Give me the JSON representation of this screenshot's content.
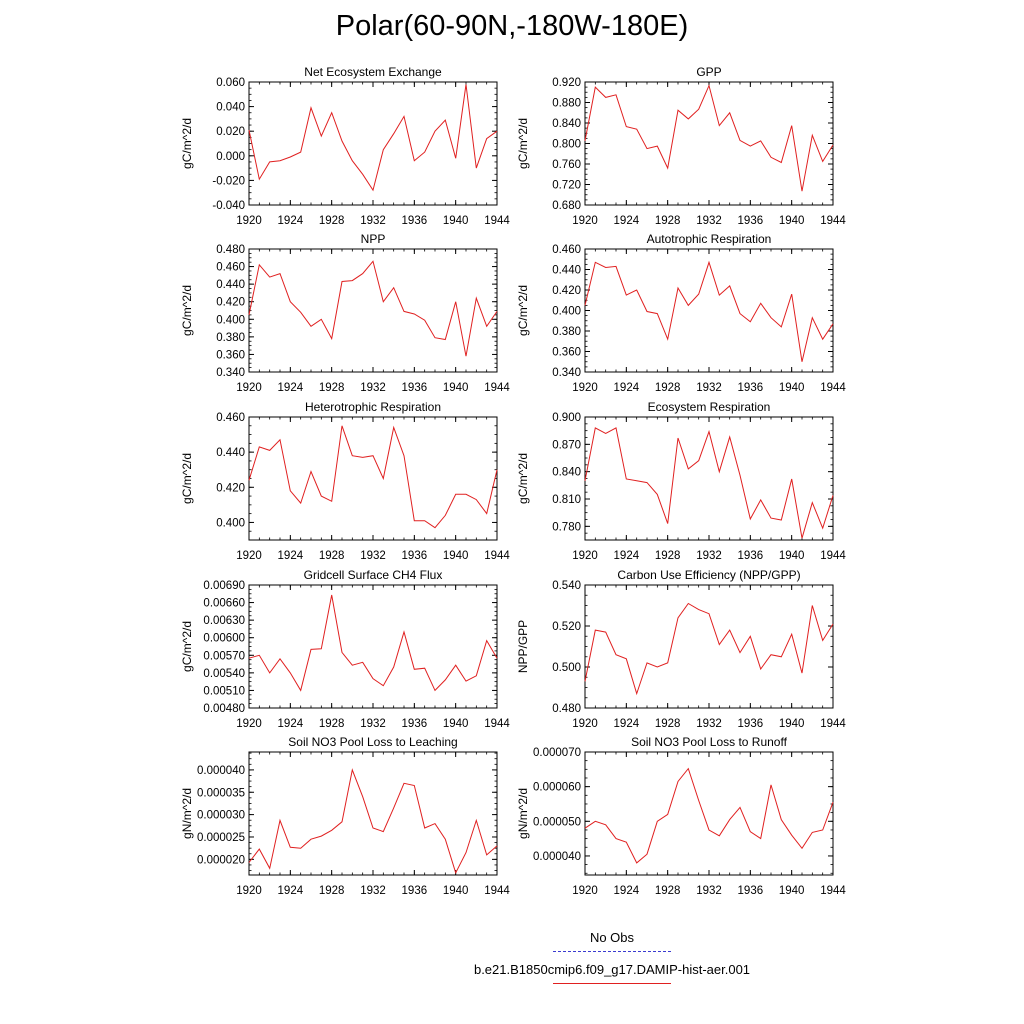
{
  "title": "Polar(60-90N,-180W-180E)",
  "colors": {
    "model": "#e02020",
    "obs": "#3b3bd0",
    "axis": "#000000"
  },
  "legend": {
    "obs_label": "No Obs",
    "model_label": "b.e21.B1850cmip6.f09_g17.DAMIP-hist-aer.001"
  },
  "chart_data": [
    {
      "type": "line",
      "title": "Net Ecosystem Exchange",
      "ylabel": "gC/m^2/d",
      "ylim": [
        -0.04,
        0.06
      ],
      "yticks": [
        "-0.040",
        "-0.020",
        "0.000",
        "0.020",
        "0.040",
        "0.060"
      ],
      "xlim": [
        1920,
        1944
      ],
      "xticks": [
        "1920",
        "1924",
        "1928",
        "1932",
        "1936",
        "1940",
        "1944"
      ],
      "x": [
        1920,
        1921,
        1922,
        1923,
        1924,
        1925,
        1926,
        1927,
        1928,
        1929,
        1930,
        1931,
        1932,
        1933,
        1934,
        1935,
        1936,
        1937,
        1938,
        1939,
        1940,
        1941,
        1942,
        1943,
        1944
      ],
      "series": [
        {
          "values": [
            0.021,
            -0.019,
            -0.005,
            -0.004,
            -0.001,
            0.003,
            0.039,
            0.016,
            0.035,
            0.012,
            -0.004,
            -0.015,
            -0.028,
            0.005,
            0.018,
            0.032,
            -0.004,
            0.003,
            0.02,
            0.029,
            -0.002,
            0.058,
            -0.01,
            0.014,
            0.02
          ]
        }
      ]
    },
    {
      "type": "line",
      "title": "GPP",
      "ylabel": "gC/m^2/d",
      "ylim": [
        0.68,
        0.92
      ],
      "yticks": [
        "0.680",
        "0.720",
        "0.760",
        "0.800",
        "0.840",
        "0.880",
        "0.920"
      ],
      "xlim": [
        1920,
        1944
      ],
      "xticks": [
        "1920",
        "1924",
        "1928",
        "1932",
        "1936",
        "1940",
        "1944"
      ],
      "x": [
        1920,
        1921,
        1922,
        1923,
        1924,
        1925,
        1926,
        1927,
        1928,
        1929,
        1930,
        1931,
        1932,
        1933,
        1934,
        1935,
        1936,
        1937,
        1938,
        1939,
        1940,
        1941,
        1942,
        1943,
        1944
      ],
      "series": [
        {
          "values": [
            0.805,
            0.91,
            0.89,
            0.895,
            0.833,
            0.828,
            0.79,
            0.795,
            0.752,
            0.865,
            0.848,
            0.867,
            0.913,
            0.835,
            0.86,
            0.806,
            0.795,
            0.805,
            0.773,
            0.763,
            0.835,
            0.707,
            0.816,
            0.765,
            0.797
          ]
        }
      ]
    },
    {
      "type": "line",
      "title": "NPP",
      "ylabel": "gC/m^2/d",
      "ylim": [
        0.34,
        0.48
      ],
      "yticks": [
        "0.340",
        "0.360",
        "0.380",
        "0.400",
        "0.420",
        "0.440",
        "0.460",
        "0.480"
      ],
      "xlim": [
        1920,
        1944
      ],
      "xticks": [
        "1920",
        "1924",
        "1928",
        "1932",
        "1936",
        "1940",
        "1944"
      ],
      "x": [
        1920,
        1921,
        1922,
        1923,
        1924,
        1925,
        1926,
        1927,
        1928,
        1929,
        1930,
        1931,
        1932,
        1933,
        1934,
        1935,
        1936,
        1937,
        1938,
        1939,
        1940,
        1941,
        1942,
        1943,
        1944
      ],
      "series": [
        {
          "values": [
            0.405,
            0.462,
            0.448,
            0.452,
            0.42,
            0.408,
            0.392,
            0.4,
            0.378,
            0.443,
            0.444,
            0.452,
            0.466,
            0.42,
            0.436,
            0.409,
            0.406,
            0.399,
            0.379,
            0.377,
            0.42,
            0.358,
            0.424,
            0.392,
            0.409
          ]
        }
      ]
    },
    {
      "type": "line",
      "title": "Autotrophic Respiration",
      "ylabel": "gC/m^2/d",
      "ylim": [
        0.34,
        0.46
      ],
      "yticks": [
        "0.340",
        "0.360",
        "0.380",
        "0.400",
        "0.420",
        "0.440",
        "0.460"
      ],
      "xlim": [
        1920,
        1944
      ],
      "xticks": [
        "1920",
        "1924",
        "1928",
        "1932",
        "1936",
        "1940",
        "1944"
      ],
      "x": [
        1920,
        1921,
        1922,
        1923,
        1924,
        1925,
        1926,
        1927,
        1928,
        1929,
        1930,
        1931,
        1932,
        1933,
        1934,
        1935,
        1936,
        1937,
        1938,
        1939,
        1940,
        1941,
        1942,
        1943,
        1944
      ],
      "series": [
        {
          "values": [
            0.405,
            0.447,
            0.442,
            0.443,
            0.415,
            0.42,
            0.399,
            0.397,
            0.372,
            0.422,
            0.405,
            0.416,
            0.447,
            0.415,
            0.424,
            0.397,
            0.389,
            0.407,
            0.393,
            0.384,
            0.416,
            0.35,
            0.393,
            0.372,
            0.387
          ]
        }
      ]
    },
    {
      "type": "line",
      "title": "Heterotrophic Respiration",
      "ylabel": "gC/m^2/d",
      "ylim": [
        0.39,
        0.46
      ],
      "yticks": [
        "0.400",
        "0.420",
        "0.440",
        "0.460"
      ],
      "xlim": [
        1920,
        1944
      ],
      "xticks": [
        "1920",
        "1924",
        "1928",
        "1932",
        "1936",
        "1940",
        "1944"
      ],
      "x": [
        1920,
        1921,
        1922,
        1923,
        1924,
        1925,
        1926,
        1927,
        1928,
        1929,
        1930,
        1931,
        1932,
        1933,
        1934,
        1935,
        1936,
        1937,
        1938,
        1939,
        1940,
        1941,
        1942,
        1943,
        1944
      ],
      "series": [
        {
          "values": [
            0.424,
            0.443,
            0.441,
            0.447,
            0.418,
            0.411,
            0.429,
            0.415,
            0.412,
            0.455,
            0.438,
            0.437,
            0.438,
            0.425,
            0.454,
            0.438,
            0.401,
            0.401,
            0.397,
            0.404,
            0.416,
            0.416,
            0.413,
            0.405,
            0.43
          ]
        }
      ]
    },
    {
      "type": "line",
      "title": "Ecosystem Respiration",
      "ylabel": "gC/m^2/d",
      "ylim": [
        0.765,
        0.9
      ],
      "yticks": [
        "0.780",
        "0.810",
        "0.840",
        "0.870",
        "0.900"
      ],
      "xlim": [
        1920,
        1944
      ],
      "xticks": [
        "1920",
        "1924",
        "1928",
        "1932",
        "1936",
        "1940",
        "1944"
      ],
      "x": [
        1920,
        1921,
        1922,
        1923,
        1924,
        1925,
        1926,
        1927,
        1928,
        1929,
        1930,
        1931,
        1932,
        1933,
        1934,
        1935,
        1936,
        1937,
        1938,
        1939,
        1940,
        1941,
        1942,
        1943,
        1944
      ],
      "series": [
        {
          "values": [
            0.83,
            0.888,
            0.882,
            0.888,
            0.832,
            0.83,
            0.828,
            0.815,
            0.783,
            0.877,
            0.843,
            0.852,
            0.884,
            0.84,
            0.878,
            0.836,
            0.788,
            0.809,
            0.789,
            0.787,
            0.832,
            0.767,
            0.806,
            0.778,
            0.814
          ]
        }
      ]
    },
    {
      "type": "line",
      "title": "Gridcell Surface CH4 Flux",
      "ylabel": "gC/m^2/d",
      "ylim": [
        0.0048,
        0.0069
      ],
      "yticks": [
        "0.00480",
        "0.00510",
        "0.00540",
        "0.00570",
        "0.00600",
        "0.00630",
        "0.00660",
        "0.00690"
      ],
      "xlim": [
        1920,
        1944
      ],
      "xticks": [
        "1920",
        "1924",
        "1928",
        "1932",
        "1936",
        "1940",
        "1944"
      ],
      "x": [
        1920,
        1921,
        1922,
        1923,
        1924,
        1925,
        1926,
        1927,
        1928,
        1929,
        1930,
        1931,
        1932,
        1933,
        1934,
        1935,
        1936,
        1937,
        1938,
        1939,
        1940,
        1941,
        1942,
        1943,
        1944
      ],
      "series": [
        {
          "values": [
            0.00565,
            0.0057,
            0.0054,
            0.00564,
            0.0054,
            0.0051,
            0.0058,
            0.00581,
            0.00673,
            0.00575,
            0.00553,
            0.00558,
            0.0053,
            0.00518,
            0.0055,
            0.0061,
            0.00546,
            0.00548,
            0.0051,
            0.00528,
            0.00553,
            0.00526,
            0.00535,
            0.00595,
            0.00565
          ]
        }
      ]
    },
    {
      "type": "line",
      "title": "Carbon Use Efficiency (NPP/GPP)",
      "ylabel": "NPP/GPP",
      "ylim": [
        0.48,
        0.54
      ],
      "yticks": [
        "0.480",
        "0.500",
        "0.520",
        "0.540"
      ],
      "xlim": [
        1920,
        1944
      ],
      "xticks": [
        "1920",
        "1924",
        "1928",
        "1932",
        "1936",
        "1940",
        "1944"
      ],
      "x": [
        1920,
        1921,
        1922,
        1923,
        1924,
        1925,
        1926,
        1927,
        1928,
        1929,
        1930,
        1931,
        1932,
        1933,
        1934,
        1935,
        1936,
        1937,
        1938,
        1939,
        1940,
        1941,
        1942,
        1943,
        1944
      ],
      "series": [
        {
          "values": [
            0.493,
            0.518,
            0.517,
            0.506,
            0.504,
            0.487,
            0.502,
            0.5,
            0.502,
            0.524,
            0.531,
            0.528,
            0.526,
            0.511,
            0.518,
            0.507,
            0.515,
            0.499,
            0.506,
            0.505,
            0.516,
            0.497,
            0.53,
            0.513,
            0.521
          ]
        }
      ]
    },
    {
      "type": "line",
      "title": "Soil NO3 Pool Loss to Leaching",
      "ylabel": "gN/m^2/d",
      "ylim": [
        1.65e-05,
        4.4e-05
      ],
      "yticks": [
        "0.000020",
        "0.000025",
        "0.000030",
        "0.000035",
        "0.000040"
      ],
      "xlim": [
        1920,
        1944
      ],
      "xticks": [
        "1920",
        "1924",
        "1928",
        "1932",
        "1936",
        "1940",
        "1944"
      ],
      "x": [
        1920,
        1921,
        1922,
        1923,
        1924,
        1925,
        1926,
        1927,
        1928,
        1929,
        1930,
        1931,
        1932,
        1933,
        1934,
        1935,
        1936,
        1937,
        1938,
        1939,
        1940,
        1941,
        1942,
        1943,
        1944
      ],
      "series": [
        {
          "values": [
            1.93e-05,
            2.23e-05,
            1.8e-05,
            2.87e-05,
            2.27e-05,
            2.25e-05,
            2.45e-05,
            2.52e-05,
            2.65e-05,
            2.84e-05,
            4e-05,
            3.4e-05,
            2.7e-05,
            2.62e-05,
            3.15e-05,
            3.7e-05,
            3.65e-05,
            2.7e-05,
            2.8e-05,
            2.45e-05,
            1.7e-05,
            2.15e-05,
            2.87e-05,
            2.1e-05,
            2.3e-05
          ]
        }
      ]
    },
    {
      "type": "line",
      "title": "Soil NO3 Pool Loss to Runoff",
      "ylabel": "gN/m^2/d",
      "ylim": [
        3.45e-05,
        7e-05
      ],
      "yticks": [
        "0.000040",
        "0.000050",
        "0.000060",
        "0.000070"
      ],
      "xlim": [
        1920,
        1944
      ],
      "xticks": [
        "1920",
        "1924",
        "1928",
        "1932",
        "1936",
        "1940",
        "1944"
      ],
      "x": [
        1920,
        1921,
        1922,
        1923,
        1924,
        1925,
        1926,
        1927,
        1928,
        1929,
        1930,
        1931,
        1932,
        1933,
        1934,
        1935,
        1936,
        1937,
        1938,
        1939,
        1940,
        1941,
        1942,
        1943,
        1944
      ],
      "series": [
        {
          "values": [
            4.8e-05,
            5e-05,
            4.9e-05,
            4.5e-05,
            4.4e-05,
            3.8e-05,
            4.05e-05,
            5e-05,
            5.2e-05,
            6.15e-05,
            6.52e-05,
            5.6e-05,
            4.75e-05,
            4.58e-05,
            5.05e-05,
            5.4e-05,
            4.7e-05,
            4.5e-05,
            6.05e-05,
            5.05e-05,
            4.6e-05,
            4.22e-05,
            4.68e-05,
            4.75e-05,
            5.55e-05
          ]
        }
      ]
    }
  ]
}
